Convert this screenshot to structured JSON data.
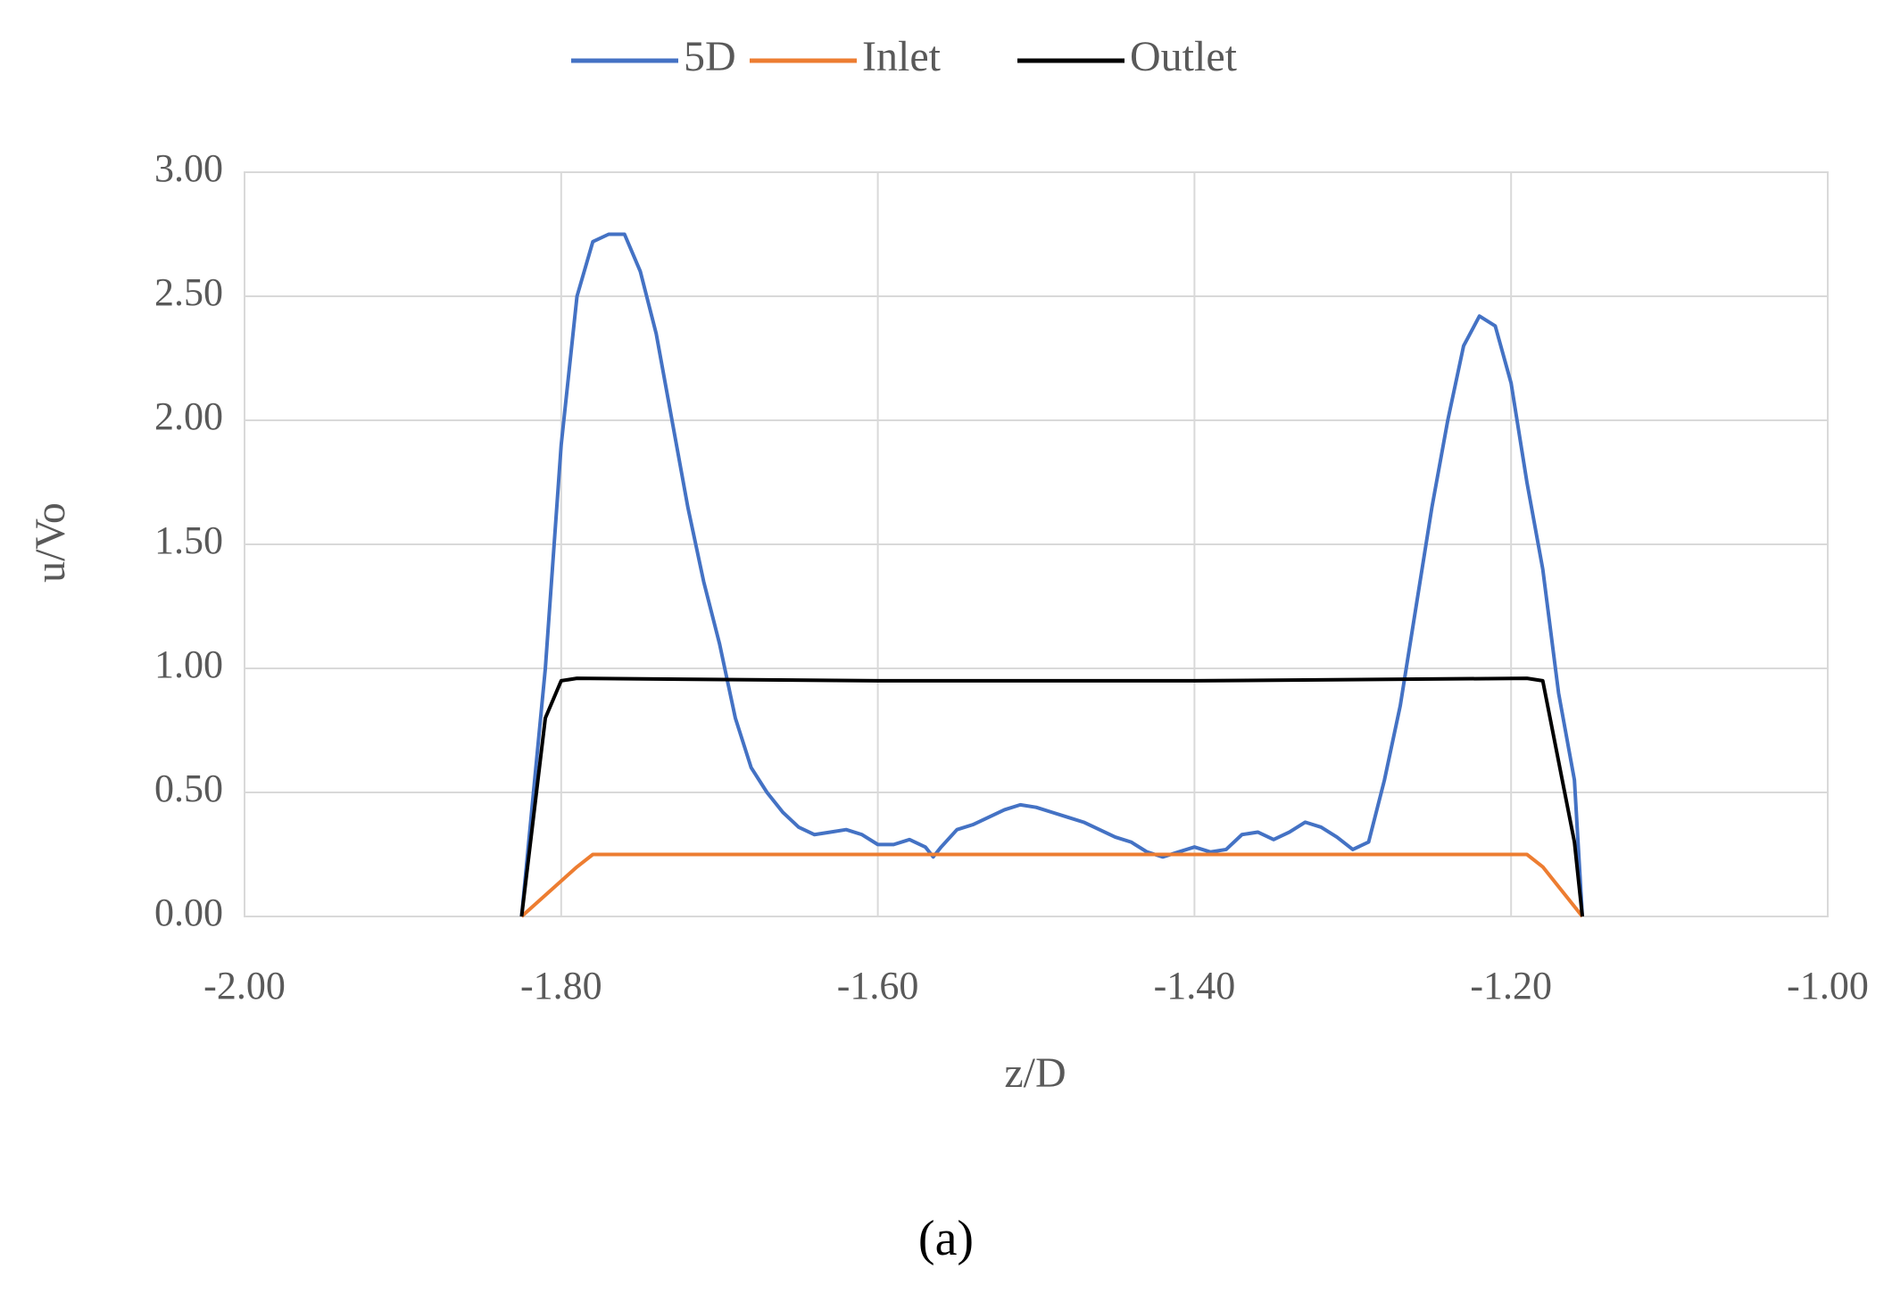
{
  "chart_data": {
    "type": "line",
    "x_label": "z/D",
    "y_label": "u/Vo",
    "caption": "(a)",
    "xlim": [
      -2.0,
      -1.0
    ],
    "xticks": [
      {
        "value": -2.0,
        "label": "-2.00"
      },
      {
        "value": -1.8,
        "label": "-1.80"
      },
      {
        "value": -1.6,
        "label": "-1.60"
      },
      {
        "value": -1.4,
        "label": "-1.40"
      },
      {
        "value": -1.2,
        "label": "-1.20"
      },
      {
        "value": -1.0,
        "label": "-1.00"
      }
    ],
    "ylim": [
      0,
      3.0
    ],
    "yticks": [
      {
        "value": 0,
        "label": "0.00"
      },
      {
        "value": 0.5,
        "label": "0.50"
      },
      {
        "value": 1.0,
        "label": "1.00"
      },
      {
        "value": 1.5,
        "label": "1.50"
      },
      {
        "value": 2.0,
        "label": "2.00"
      },
      {
        "value": 2.5,
        "label": "2.50"
      },
      {
        "value": 3.0,
        "label": "3.00"
      }
    ],
    "grid": true,
    "legend": "top",
    "series": [
      {
        "name": "5D",
        "color": "#4472c4",
        "x": [
          -1.825,
          -1.81,
          -1.8,
          -1.79,
          -1.78,
          -1.77,
          -1.76,
          -1.75,
          -1.74,
          -1.73,
          -1.72,
          -1.71,
          -1.7,
          -1.69,
          -1.68,
          -1.67,
          -1.66,
          -1.65,
          -1.64,
          -1.63,
          -1.62,
          -1.61,
          -1.6,
          -1.59,
          -1.58,
          -1.57,
          -1.565,
          -1.56,
          -1.55,
          -1.54,
          -1.53,
          -1.52,
          -1.51,
          -1.5,
          -1.49,
          -1.48,
          -1.47,
          -1.46,
          -1.45,
          -1.44,
          -1.43,
          -1.42,
          -1.41,
          -1.4,
          -1.39,
          -1.38,
          -1.37,
          -1.36,
          -1.35,
          -1.34,
          -1.33,
          -1.32,
          -1.31,
          -1.3,
          -1.29,
          -1.28,
          -1.27,
          -1.26,
          -1.25,
          -1.24,
          -1.23,
          -1.22,
          -1.21,
          -1.2,
          -1.19,
          -1.18,
          -1.17,
          -1.16,
          -1.155
        ],
        "values": [
          0,
          1.0,
          1.9,
          2.5,
          2.72,
          2.75,
          2.75,
          2.6,
          2.35,
          2.0,
          1.65,
          1.35,
          1.1,
          0.8,
          0.6,
          0.5,
          0.42,
          0.36,
          0.33,
          0.34,
          0.35,
          0.33,
          0.29,
          0.29,
          0.31,
          0.28,
          0.24,
          0.28,
          0.35,
          0.37,
          0.4,
          0.43,
          0.45,
          0.44,
          0.42,
          0.4,
          0.38,
          0.35,
          0.32,
          0.3,
          0.26,
          0.24,
          0.26,
          0.28,
          0.26,
          0.27,
          0.33,
          0.34,
          0.31,
          0.34,
          0.38,
          0.36,
          0.32,
          0.27,
          0.3,
          0.55,
          0.85,
          1.25,
          1.65,
          2.0,
          2.3,
          2.42,
          2.38,
          2.15,
          1.75,
          1.4,
          0.9,
          0.55,
          0
        ]
      },
      {
        "name": "Inlet",
        "color": "#ed7d31",
        "x": [
          -1.825,
          -1.79,
          -1.78,
          -1.19,
          -1.18,
          -1.155
        ],
        "values": [
          0,
          0.2,
          0.25,
          0.25,
          0.2,
          0
        ]
      },
      {
        "name": "Outlet",
        "color": "#000000",
        "x": [
          -1.825,
          -1.81,
          -1.8,
          -1.79,
          -1.6,
          -1.4,
          -1.19,
          -1.18,
          -1.16,
          -1.155
        ],
        "values": [
          0,
          0.8,
          0.95,
          0.96,
          0.95,
          0.95,
          0.96,
          0.95,
          0.3,
          0
        ]
      }
    ]
  }
}
